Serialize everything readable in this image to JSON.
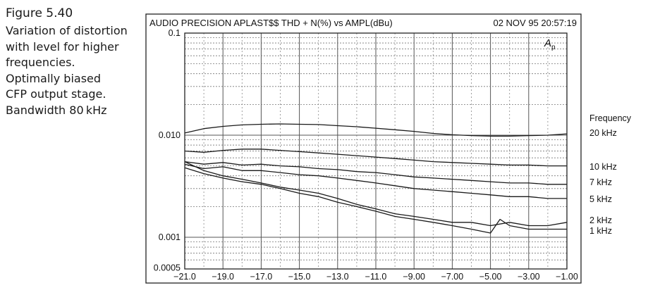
{
  "caption": {
    "title": "Figure 5.40",
    "text": "Variation of distortion\nwith level for higher\nfrequencies.\nOptimally biased\nCFP output stage.\nBandwidth 80 kHz"
  },
  "chart_data": {
    "type": "line",
    "title": "AUDIO PRECISION APLAST$$ THD + N(%) vs AMPL(dBu)",
    "timestamp": "02 NOV 95 20:57:19",
    "badge": "A",
    "badge_sub": "p",
    "legend_title": "Frequency",
    "xlim": [
      -21,
      -1
    ],
    "ylim": [
      0.0005,
      0.1
    ],
    "y_scale": "log",
    "grid": true,
    "x_ticks": [
      -21,
      -19,
      -17,
      -15,
      -13,
      -11,
      -9,
      -7,
      -5,
      -3,
      -1
    ],
    "x_tick_labels": [
      "−21.0",
      "−19.0",
      "−17.0",
      "−15.0",
      "−13.0",
      "−11.0",
      "−9.00",
      "−7.00",
      "−5.00",
      "−3.00",
      "−1.00"
    ],
    "y_ticks": [
      0.1,
      0.01,
      0.001,
      0.0005
    ],
    "y_tick_labels": [
      "0.1",
      "0.010",
      "0.001",
      "0.0005"
    ],
    "series": [
      {
        "name": "20 kHz",
        "x": [
          -21,
          -20,
          -19,
          -18,
          -17,
          -16,
          -15,
          -14,
          -13,
          -12,
          -11,
          -10,
          -9,
          -8,
          -7,
          -6,
          -5,
          -4,
          -3,
          -2,
          -1
        ],
        "y": [
          0.0105,
          0.0116,
          0.0122,
          0.0126,
          0.0128,
          0.0129,
          0.0128,
          0.0127,
          0.0124,
          0.0121,
          0.0117,
          0.0113,
          0.0109,
          0.0104,
          0.0101,
          0.0099,
          0.0098,
          0.0098,
          0.0099,
          0.01,
          0.0103
        ]
      },
      {
        "name": "10 kHz",
        "x": [
          -21,
          -20,
          -19,
          -18,
          -17,
          -16,
          -15,
          -14,
          -13,
          -12,
          -11,
          -10,
          -9,
          -8,
          -7,
          -6,
          -5,
          -4,
          -3,
          -2,
          -1
        ],
        "y": [
          0.007,
          0.0068,
          0.0071,
          0.0073,
          0.0073,
          0.0071,
          0.0069,
          0.0067,
          0.0065,
          0.0063,
          0.0061,
          0.0059,
          0.0057,
          0.0055,
          0.0054,
          0.0053,
          0.0052,
          0.0051,
          0.0051,
          0.005,
          0.005
        ]
      },
      {
        "name": "7 kHz",
        "x": [
          -21,
          -20,
          -19,
          -18,
          -17,
          -16,
          -15,
          -14,
          -13,
          -12,
          -11,
          -10,
          -9,
          -8,
          -7,
          -6,
          -5,
          -4,
          -3,
          -2,
          -1
        ],
        "y": [
          0.0055,
          0.0052,
          0.0054,
          0.0051,
          0.0052,
          0.005,
          0.0049,
          0.0047,
          0.0046,
          0.0044,
          0.0043,
          0.0041,
          0.0039,
          0.0038,
          0.0037,
          0.0036,
          0.0035,
          0.0034,
          0.0034,
          0.0033,
          0.0033
        ]
      },
      {
        "name": "5 kHz",
        "x": [
          -21,
          -20,
          -19,
          -18,
          -17,
          -16,
          -15,
          -14,
          -13,
          -12,
          -11,
          -10,
          -9,
          -8,
          -7,
          -6,
          -5,
          -4,
          -3,
          -2,
          -1
        ],
        "y": [
          0.0052,
          0.0047,
          0.0049,
          0.0045,
          0.0045,
          0.0043,
          0.0041,
          0.004,
          0.0038,
          0.0036,
          0.0034,
          0.0032,
          0.003,
          0.0029,
          0.0028,
          0.0027,
          0.0026,
          0.0025,
          0.0025,
          0.0024,
          0.0024
        ]
      },
      {
        "name": "2 kHz",
        "x": [
          -21,
          -20,
          -19,
          -18,
          -17,
          -16,
          -15,
          -14,
          -13,
          -12,
          -11,
          -10,
          -9,
          -8,
          -7,
          -6,
          -5,
          -4,
          -3,
          -2,
          -1
        ],
        "y": [
          0.0055,
          0.0045,
          0.004,
          0.0037,
          0.0034,
          0.0031,
          0.0029,
          0.0027,
          0.0024,
          0.0021,
          0.0019,
          0.0017,
          0.0016,
          0.0015,
          0.0014,
          0.0014,
          0.0013,
          0.0014,
          0.0013,
          0.0013,
          0.0014
        ]
      },
      {
        "name": "1 kHz",
        "x": [
          -21,
          -20,
          -19,
          -18,
          -17,
          -16,
          -15,
          -14,
          -13,
          -12,
          -11,
          -10,
          -9,
          -8,
          -7,
          -6,
          -5,
          -4.5,
          -4,
          -3,
          -2,
          -1
        ],
        "y": [
          0.0048,
          0.0042,
          0.0038,
          0.0035,
          0.0033,
          0.003,
          0.0027,
          0.0025,
          0.0022,
          0.002,
          0.0018,
          0.0016,
          0.0015,
          0.0014,
          0.0013,
          0.0012,
          0.0011,
          0.0015,
          0.0013,
          0.0012,
          0.0012,
          0.0012
        ]
      }
    ]
  }
}
